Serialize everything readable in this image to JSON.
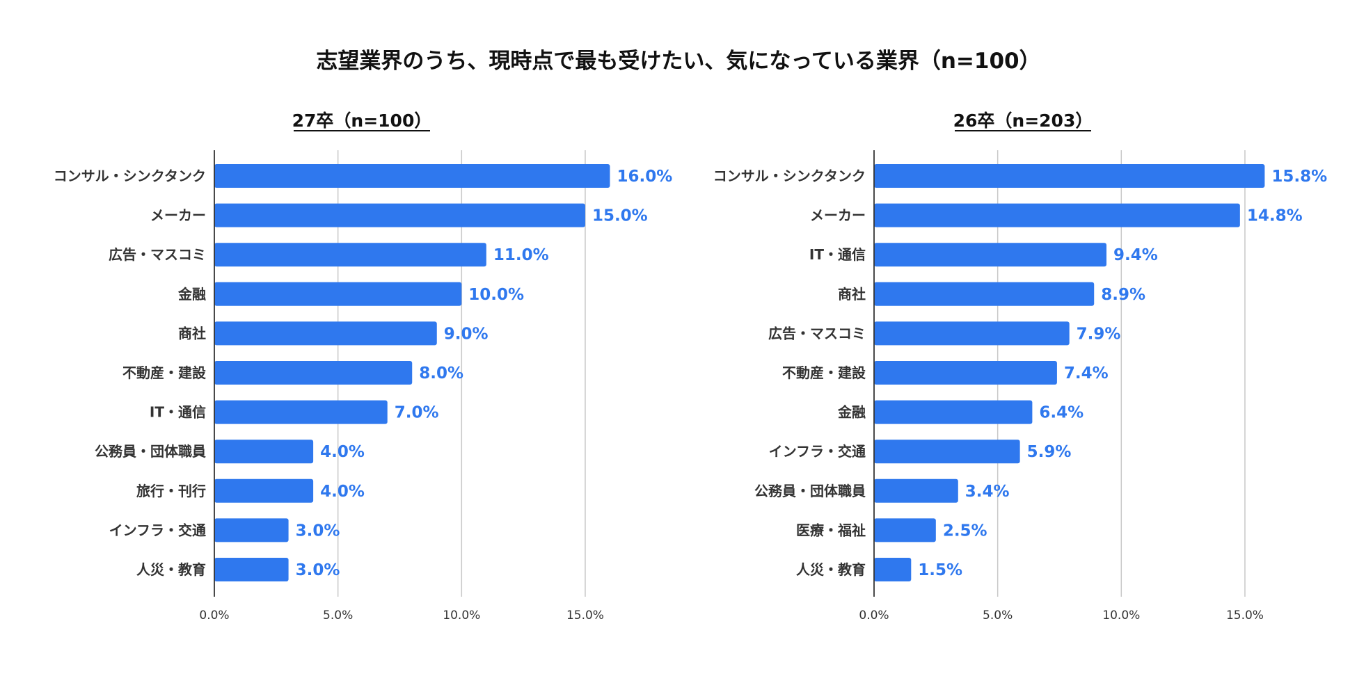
{
  "title": "志望業界のうち、現時点で最も受けたい、気になっている業界（n=100）",
  "colors": {
    "bar": "#2f78ee",
    "value_label": "#2f78ee",
    "grid": "#c8c8c8",
    "axis": "#333333"
  },
  "chart_data": [
    {
      "type": "bar",
      "orientation": "horizontal",
      "title": "27卒（n=100）",
      "categories": [
        "コンサル・シンクタンク",
        "メーカー",
        "広告・マスコミ",
        "金融",
        "商社",
        "不動産・建設",
        "IT・通信",
        "公務員・団体職員",
        "旅行・刊行",
        "インフラ・交通",
        "人災・教育"
      ],
      "values": [
        16.0,
        15.0,
        11.0,
        10.0,
        9.0,
        8.0,
        7.0,
        4.0,
        4.0,
        3.0,
        3.0
      ],
      "value_labels": [
        "16.0%",
        "15.0%",
        "11.0%",
        "10.0%",
        "9.0%",
        "8.0%",
        "7.0%",
        "4.0%",
        "4.0%",
        "3.0%",
        "3.0%"
      ],
      "xlim": [
        0,
        15
      ],
      "ticks": [
        0,
        5,
        10,
        15
      ],
      "tick_labels": [
        "0.0%",
        "5.0%",
        "10.0%",
        "15.0%"
      ],
      "grid": true
    },
    {
      "type": "bar",
      "orientation": "horizontal",
      "title": "26卒（n=203）",
      "categories": [
        "コンサル・シンクタンク",
        "メーカー",
        "IT・通信",
        "商社",
        "広告・マスコミ",
        "不動産・建設",
        "金融",
        "インフラ・交通",
        "公務員・団体職員",
        "医療・福祉",
        "人災・教育"
      ],
      "values": [
        15.8,
        14.8,
        9.4,
        8.9,
        7.9,
        7.4,
        6.4,
        5.9,
        3.4,
        2.5,
        1.5
      ],
      "value_labels": [
        "15.8%",
        "14.8%",
        "9.4%",
        "8.9%",
        "7.9%",
        "7.4%",
        "6.4%",
        "5.9%",
        "3.4%",
        "2.5%",
        "1.5%"
      ],
      "xlim": [
        0,
        15
      ],
      "ticks": [
        0,
        5,
        10,
        15
      ],
      "tick_labels": [
        "0.0%",
        "5.0%",
        "10.0%",
        "15.0%"
      ],
      "grid": true
    }
  ]
}
